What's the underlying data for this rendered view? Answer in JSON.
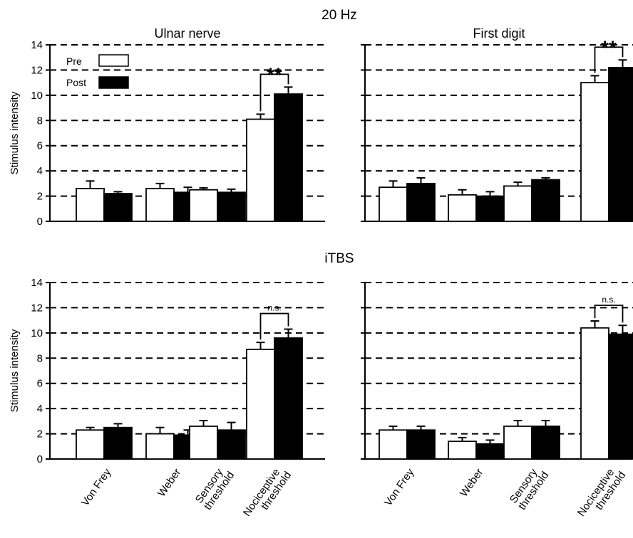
{
  "colors": {
    "pre": "#ffffff",
    "post": "#000000",
    "axis": "#000000",
    "grid": "#000000"
  },
  "rows": [
    {
      "title": "20 Hz"
    },
    {
      "title": "iTBS"
    }
  ],
  "legend": {
    "items": [
      {
        "label": "Pre",
        "color": "#ffffff"
      },
      {
        "label": "Post",
        "color": "#000000"
      }
    ]
  },
  "chart_data": [
    {
      "type": "bar",
      "title": "Ulnar nerve",
      "ylabel": "Stimulus intensity",
      "categories": [
        "Von Frey",
        "Weber",
        "Sensory threshold",
        "Nociceptive threshold"
      ],
      "ylim": [
        0,
        14
      ],
      "yticks": [
        0,
        2,
        4,
        6,
        8,
        10,
        12,
        14
      ],
      "grid": "dashed-horizontal",
      "series": [
        {
          "name": "Pre",
          "values": [
            2.6,
            2.6,
            2.5,
            8.1
          ],
          "errors": [
            0.6,
            0.4,
            0.15,
            0.4
          ]
        },
        {
          "name": "Post",
          "values": [
            2.2,
            2.3,
            2.3,
            10.1
          ],
          "errors": [
            0.15,
            0.4,
            0.25,
            0.55
          ]
        }
      ],
      "significance": {
        "category": "Nociceptive threshold",
        "label": "**"
      }
    },
    {
      "type": "bar",
      "title": "First digit",
      "ylabel": "",
      "categories": [
        "Von Frey",
        "Weber",
        "Sensory threshold",
        "Nociceptive threshold"
      ],
      "ylim": [
        0,
        14
      ],
      "yticks": [
        0,
        2,
        4,
        6,
        8,
        10,
        12,
        14
      ],
      "grid": "dashed-horizontal",
      "series": [
        {
          "name": "Pre",
          "values": [
            2.7,
            2.1,
            2.8,
            11.0
          ],
          "errors": [
            0.5,
            0.4,
            0.3,
            0.55
          ]
        },
        {
          "name": "Post",
          "values": [
            3.0,
            2.0,
            3.3,
            12.2
          ],
          "errors": [
            0.45,
            0.35,
            0.15,
            0.6
          ]
        }
      ],
      "significance": {
        "category": "Nociceptive threshold",
        "label": "**"
      }
    },
    {
      "type": "bar",
      "title": "",
      "ylabel": "Stimulus intensity",
      "categories": [
        "Von Frey",
        "Weber",
        "Sensory threshold",
        "Nociceptive threshold"
      ],
      "ylim": [
        0,
        14
      ],
      "yticks": [
        0,
        2,
        4,
        6,
        8,
        10,
        12,
        14
      ],
      "grid": "dashed-horizontal",
      "series": [
        {
          "name": "Pre",
          "values": [
            2.3,
            2.0,
            2.6,
            8.7
          ],
          "errors": [
            0.2,
            0.5,
            0.45,
            0.55
          ]
        },
        {
          "name": "Post",
          "values": [
            2.5,
            1.9,
            2.3,
            9.6
          ],
          "errors": [
            0.3,
            0.4,
            0.6,
            0.7
          ]
        }
      ],
      "significance": {
        "category": "Nociceptive threshold",
        "label": "n.s."
      }
    },
    {
      "type": "bar",
      "title": "",
      "ylabel": "",
      "categories": [
        "Von Frey",
        "Weber",
        "Sensory threshold",
        "Nociceptive threshold"
      ],
      "ylim": [
        0,
        14
      ],
      "yticks": [
        0,
        2,
        4,
        6,
        8,
        10,
        12,
        14
      ],
      "grid": "dashed-horizontal",
      "series": [
        {
          "name": "Pre",
          "values": [
            2.3,
            1.4,
            2.6,
            10.4
          ],
          "errors": [
            0.3,
            0.3,
            0.45,
            0.55
          ]
        },
        {
          "name": "Post",
          "values": [
            2.3,
            1.2,
            2.6,
            9.9
          ],
          "errors": [
            0.3,
            0.3,
            0.45,
            0.7
          ]
        }
      ],
      "significance": {
        "category": "Nociceptive threshold",
        "label": "n.s."
      }
    }
  ]
}
